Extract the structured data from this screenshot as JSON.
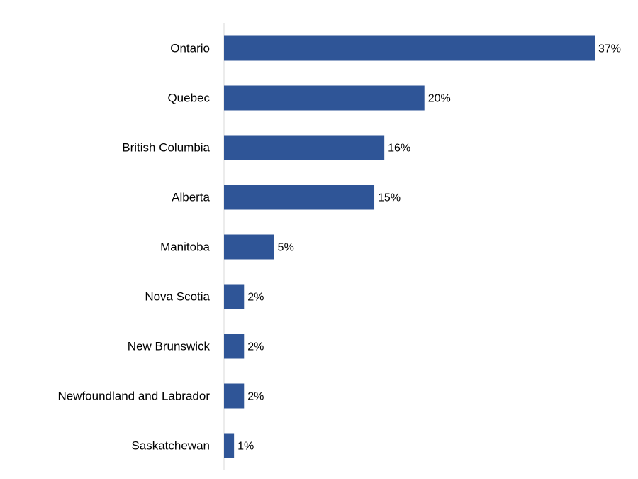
{
  "chart_data": {
    "type": "bar",
    "orientation": "horizontal",
    "categories": [
      "Ontario",
      "Quebec",
      "British Columbia",
      "Alberta",
      "Manitoba",
      "Nova Scotia",
      "New Brunswick",
      "Newfoundland and Labrador",
      "Saskatchewan"
    ],
    "values": [
      37,
      20,
      16,
      15,
      5,
      2,
      2,
      2,
      1
    ],
    "value_labels": [
      "37%",
      "20%",
      "16%",
      "15%",
      "5%",
      "2%",
      "2%",
      "2%",
      "1%"
    ],
    "unit": "%",
    "title": "",
    "xlabel": "",
    "ylabel": "",
    "xlim": [
      0,
      37
    ],
    "grid": false,
    "legend": "none",
    "bar_color": "#2F5597",
    "axis_color": "#D9D9D9"
  }
}
